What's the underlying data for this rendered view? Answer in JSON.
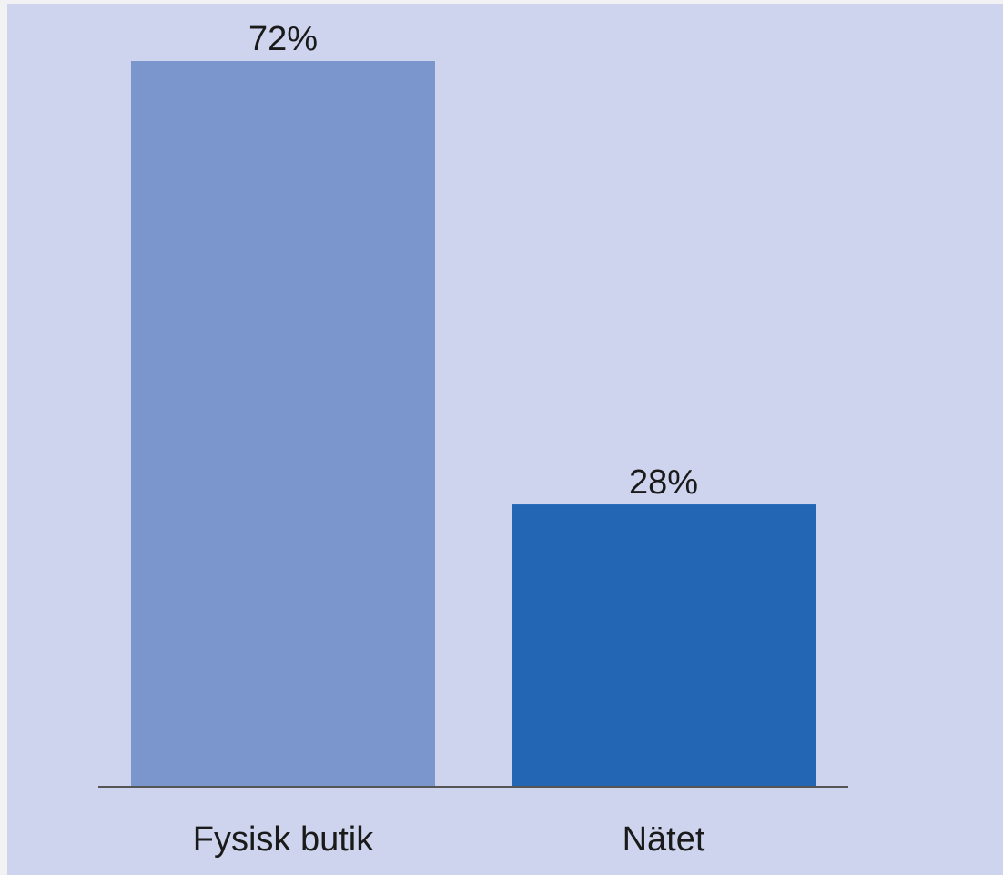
{
  "chart_data": {
    "type": "bar",
    "title": "",
    "xlabel": "",
    "ylabel": "",
    "unit": "%",
    "ylim": [
      0,
      72
    ],
    "categories": [
      "Fysisk butik",
      "Nätet"
    ],
    "values": [
      72,
      28
    ],
    "data_labels": [
      "72%",
      "28%"
    ],
    "colors": [
      "#7b96cd",
      "#2367b4"
    ],
    "grid": false,
    "legend": "none"
  },
  "colors": {
    "panel_background": "#ced4ed",
    "page_background": "#f2f2f4",
    "axis_line": "#555555",
    "text": "#1a1a1a"
  }
}
